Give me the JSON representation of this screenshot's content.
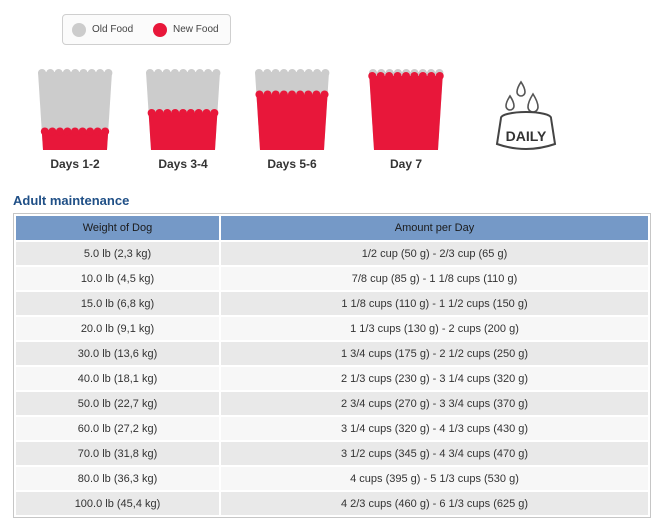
{
  "legend": {
    "old_label": "Old Food",
    "new_label": "New Food",
    "old_color": "#cccccc",
    "new_color": "#e8173a"
  },
  "stages": [
    {
      "label": "Days 1-2",
      "new_fraction": 0.25
    },
    {
      "label": "Days 3-4",
      "new_fraction": 0.5
    },
    {
      "label": "Days 5-6",
      "new_fraction": 0.75
    },
    {
      "label": "Day 7",
      "new_fraction": 1.0
    }
  ],
  "daily_icon": {
    "label": "DAILY",
    "icon": "water-bowl-icon"
  },
  "section_title": "Adult maintenance",
  "table": {
    "headers": [
      "Weight of Dog",
      "Amount per Day"
    ],
    "rows": [
      [
        "5.0 lb (2,3 kg)",
        "1/2 cup (50 g) - 2/3 cup (65 g)"
      ],
      [
        "10.0 lb (4,5 kg)",
        "7/8 cup (85 g) - 1 1/8 cups (110 g)"
      ],
      [
        "15.0 lb (6,8 kg)",
        "1 1/8 cups (110 g) - 1 1/2 cups (150 g)"
      ],
      [
        "20.0 lb (9,1 kg)",
        "1 1/3 cups (130 g) - 2 cups (200 g)"
      ],
      [
        "30.0 lb (13,6 kg)",
        "1 3/4 cups (175 g) - 2 1/2 cups (250 g)"
      ],
      [
        "40.0 lb (18,1 kg)",
        "2 1/3 cups (230 g) - 3 1/4 cups (320 g)"
      ],
      [
        "50.0 lb (22,7 kg)",
        "2 3/4 cups (270 g) - 3 3/4 cups (370 g)"
      ],
      [
        "60.0 lb (27,2 kg)",
        "3 1/4 cups (320 g) - 4 1/3 cups (430 g)"
      ],
      [
        "70.0 lb (31,8 kg)",
        "3 1/2 cups (345 g) - 4 3/4 cups (470 g)"
      ],
      [
        "80.0 lb (36,3 kg)",
        "4 cups (395 g) - 5 1/3 cups (530 g)"
      ],
      [
        "100.0 lb (45,4 kg)",
        "4 2/3 cups (460 g) - 6 1/3 cups (625 g)"
      ]
    ]
  }
}
